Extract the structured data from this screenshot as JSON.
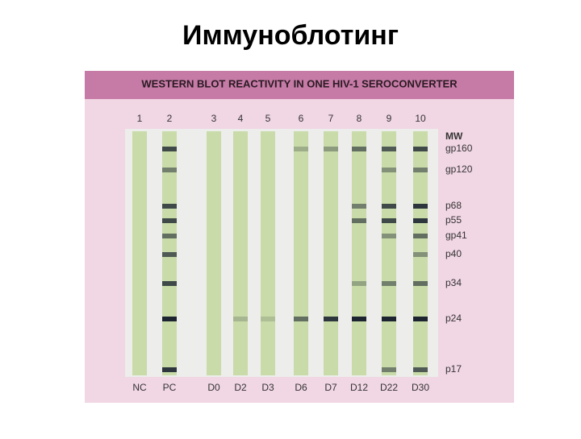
{
  "title": "Иммуноблотинг",
  "figure": {
    "heading": "WESTERN BLOT REACTIVITY IN ONE HIV-1 SEROCONVERTER",
    "lane_numbers": [
      "1",
      "2",
      "3",
      "4",
      "5",
      "6",
      "7",
      "8",
      "9",
      "10"
    ],
    "lane_labels": [
      "NC",
      "PC",
      "D0",
      "D2",
      "D3",
      "D6",
      "D7",
      "D12",
      "D22",
      "D30"
    ],
    "mw_labels": [
      "MW",
      "gp160",
      "gp120",
      "p68",
      "p55",
      "gp41",
      "p40",
      "p34",
      "p24",
      "p17"
    ]
  }
}
